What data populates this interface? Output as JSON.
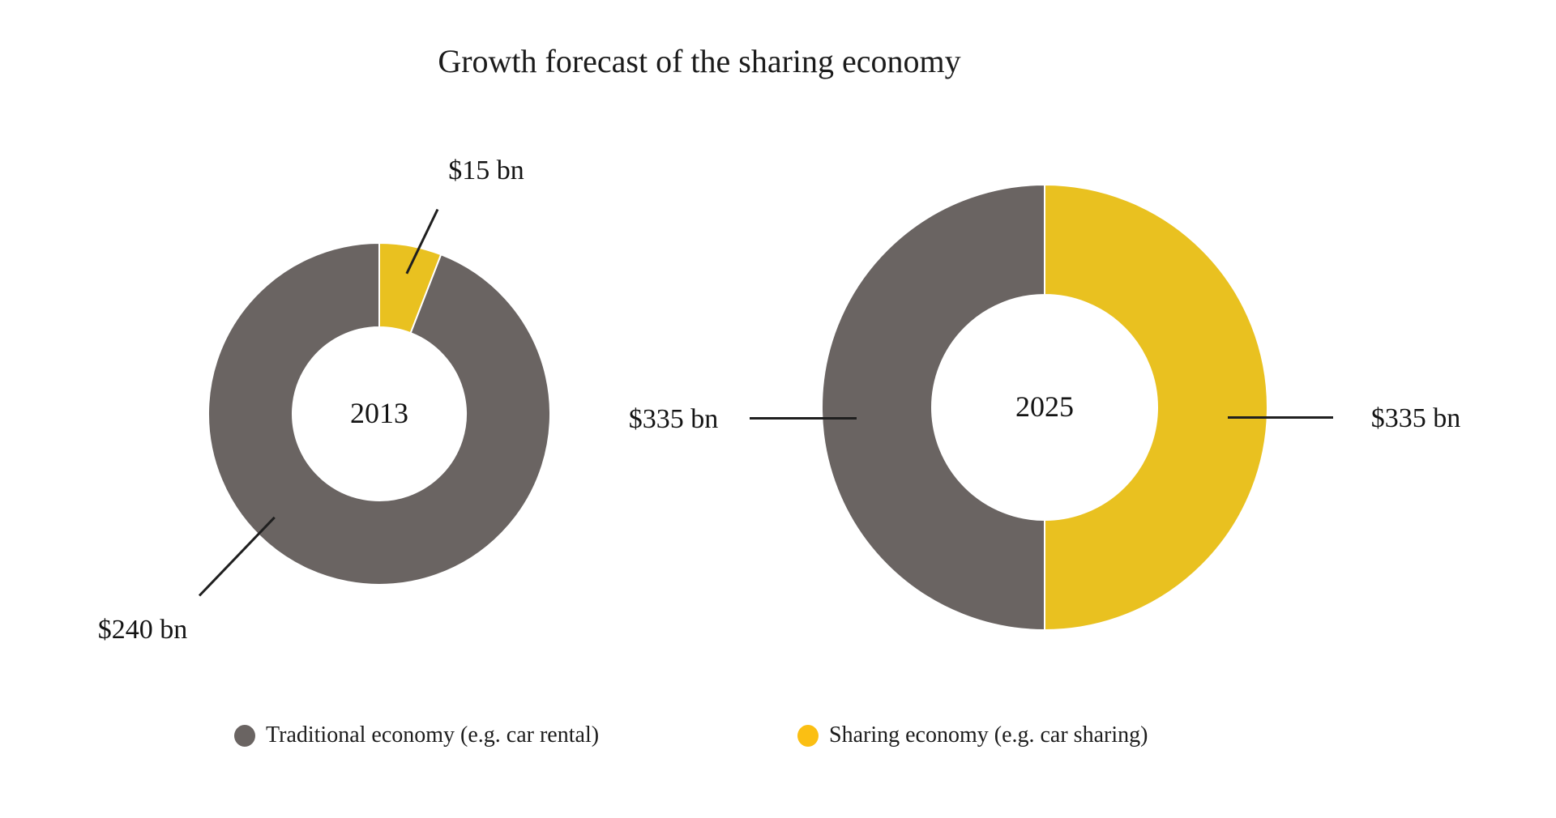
{
  "chart_data": {
    "type": "pie",
    "subtype": "donut",
    "title": "Growth forecast of the sharing economy",
    "units": "USD billions",
    "legend_position": "bottom",
    "legend": [
      {
        "label": "Traditional economy (e.g. car rental)",
        "color": "#6a6462"
      },
      {
        "label": "Sharing economy (e.g. car sharing)",
        "color": "#fbbf13"
      }
    ],
    "donuts": [
      {
        "center_label": "2013",
        "total": 255,
        "start": "top",
        "direction": "clockwise",
        "slices": [
          {
            "series": "Sharing economy (e.g. car sharing)",
            "value": 15,
            "label": "$15 bn",
            "color": "#e9c120"
          },
          {
            "series": "Traditional economy (e.g. car rental)",
            "value": 240,
            "label": "$240 bn",
            "color": "#6a6462"
          }
        ]
      },
      {
        "center_label": "2025",
        "total": 670,
        "start": "top",
        "direction": "clockwise",
        "slices": [
          {
            "series": "Sharing economy (e.g. car sharing)",
            "value": 335,
            "label": "$335 bn",
            "color": "#e9c120"
          },
          {
            "series": "Traditional economy (e.g. car rental)",
            "value": 335,
            "label": "$335 bn",
            "color": "#6a6462"
          }
        ]
      }
    ],
    "colors": {
      "traditional_gray": "#6a6462",
      "sharing_yellow": "#e9c120",
      "legend_yellow": "#fbbf13",
      "text": "#1b1b1b",
      "background": "#ffffff"
    }
  }
}
